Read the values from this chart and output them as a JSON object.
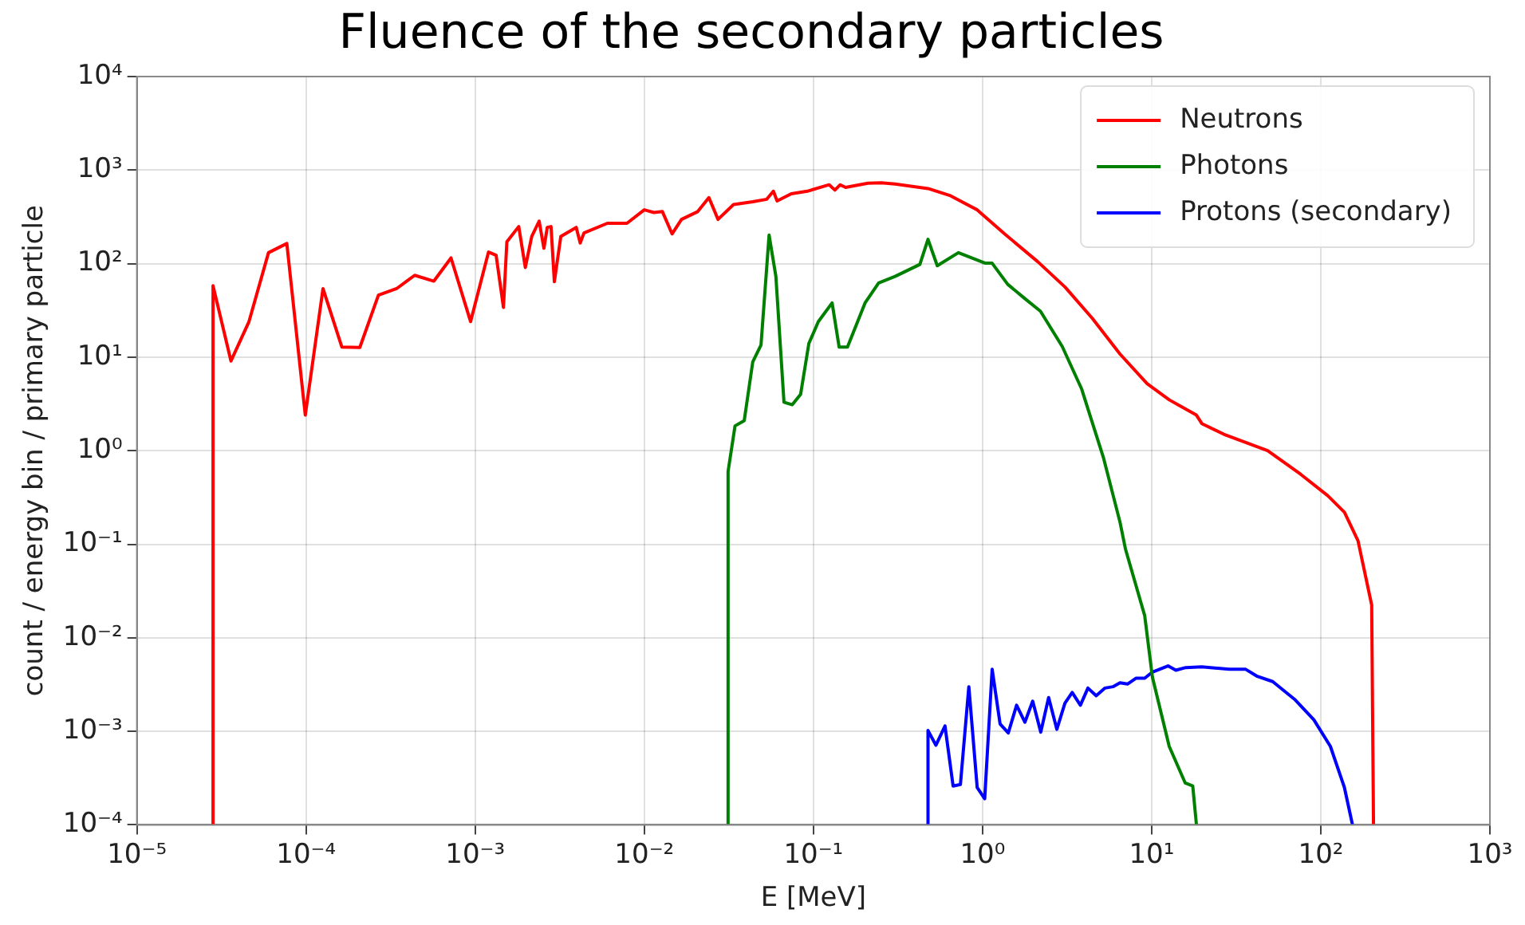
{
  "chart_data": {
    "type": "line",
    "title": "Fluence of the secondary particles",
    "xlabel": "E [MeV]",
    "ylabel": "count / energy bin / primary particle",
    "log": "xy",
    "grid": true,
    "legend": "top right",
    "marker": "none",
    "line_style": "solid",
    "xlim": [
      1e-05,
      1000
    ],
    "ylim": [
      0.0001,
      10000
    ],
    "xticks": [
      {
        "value": 1e-05,
        "label": "10⁻⁵"
      },
      {
        "value": 0.0001,
        "label": "10⁻⁴"
      },
      {
        "value": 0.001,
        "label": "10⁻³"
      },
      {
        "value": 0.01,
        "label": "10⁻²"
      },
      {
        "value": 0.1,
        "label": "10⁻¹"
      },
      {
        "value": 1,
        "label": "10⁰"
      },
      {
        "value": 10,
        "label": "10¹"
      },
      {
        "value": 100,
        "label": "10²"
      },
      {
        "value": 1000,
        "label": "10³"
      }
    ],
    "yticks": [
      {
        "value": 0.0001,
        "label": "10⁻⁴"
      },
      {
        "value": 0.001,
        "label": "10⁻³"
      },
      {
        "value": 0.01,
        "label": "10⁻²"
      },
      {
        "value": 0.1,
        "label": "10⁻¹"
      },
      {
        "value": 1,
        "label": "10⁰"
      },
      {
        "value": 10,
        "label": "10¹"
      },
      {
        "value": 100,
        "label": "10²"
      },
      {
        "value": 1000,
        "label": "10³"
      },
      {
        "value": 10000,
        "label": "10⁴"
      }
    ],
    "series": [
      {
        "name": "Neutrons",
        "color": "#ff0000",
        "x": [
          2.82e-05,
          2.82e-05,
          3.6e-05,
          4.6e-05,
          6e-05,
          7.7e-05,
          9.9e-05,
          0.000126,
          0.000163,
          0.000208,
          0.000268,
          0.000343,
          0.000439,
          0.00057,
          0.00072,
          0.00094,
          0.0012,
          0.00133,
          0.00147,
          0.00154,
          0.00181,
          0.00198,
          0.00216,
          0.00239,
          0.00255,
          0.00267,
          0.00281,
          0.00294,
          0.00321,
          0.00396,
          0.00418,
          0.0044,
          0.00605,
          0.0079,
          0.01,
          0.0114,
          0.0128,
          0.0146,
          0.0166,
          0.0207,
          0.0241,
          0.0273,
          0.0337,
          0.0438,
          0.053,
          0.058,
          0.061,
          0.074,
          0.092,
          0.124,
          0.134,
          0.144,
          0.155,
          0.21,
          0.252,
          0.304,
          0.476,
          0.64,
          0.93,
          1.35,
          2.12,
          3.08,
          4.46,
          6.5,
          9.4,
          12.7,
          18.4,
          19.8,
          26.7,
          48.5,
          76,
          110,
          138,
          166,
          200,
          205
        ],
        "values": [
          0.0001,
          58,
          9.1,
          24,
          131,
          164,
          2.4,
          54,
          12.8,
          12.7,
          46,
          54,
          75,
          65,
          115,
          24,
          133,
          123,
          34,
          171,
          249,
          91,
          195,
          285,
          146,
          244,
          249,
          64,
          195,
          244,
          166,
          213,
          270,
          270,
          376,
          352,
          360,
          208,
          297,
          360,
          508,
          297,
          428,
          458,
          488,
          594,
          468,
          558,
          594,
          697,
          611,
          697,
          653,
          724,
          730,
          710,
          635,
          536,
          376,
          208,
          105,
          56,
          26,
          10.8,
          5.2,
          3.5,
          2.4,
          1.95,
          1.5,
          1.0,
          0.56,
          0.33,
          0.22,
          0.109,
          0.0224,
          0.0001
        ]
      },
      {
        "name": "Photons",
        "color": "#008000",
        "x": [
          0.0313,
          0.0313,
          0.0344,
          0.039,
          0.0438,
          0.049,
          0.0547,
          0.06,
          0.067,
          0.075,
          0.084,
          0.094,
          0.107,
          0.129,
          0.142,
          0.159,
          0.202,
          0.243,
          0.304,
          0.426,
          0.476,
          0.54,
          0.72,
          1.04,
          1.14,
          1.41,
          1.76,
          2.2,
          2.96,
          3.85,
          5.2,
          6.5,
          7.0,
          9.1,
          10.1,
          12.7,
          15.8,
          17.5,
          18.4
        ],
        "values": [
          0.0001,
          0.6,
          1.84,
          2.1,
          8.9,
          13.5,
          202,
          73,
          3.3,
          3.1,
          4.0,
          14,
          24,
          38,
          12.8,
          12.8,
          38,
          62,
          73,
          98,
          182,
          95,
          131,
          101,
          101,
          60,
          43,
          31,
          13,
          4.6,
          0.83,
          0.172,
          0.089,
          0.0172,
          0.0038,
          0.00069,
          0.00028,
          0.00026,
          0.0001
        ]
      },
      {
        "name": "Protons (secondary)",
        "color": "#0000ff",
        "x": [
          0.476,
          0.476,
          0.53,
          0.6,
          0.67,
          0.74,
          0.83,
          0.93,
          1.03,
          1.14,
          1.27,
          1.42,
          1.59,
          1.78,
          1.98,
          2.21,
          2.46,
          2.75,
          3.07,
          3.39,
          3.79,
          4.2,
          4.7,
          5.3,
          5.9,
          6.5,
          7.2,
          8.1,
          9.1,
          10.1,
          12.5,
          13.9,
          15.9,
          19.8,
          28.8,
          36,
          41.8,
          52,
          70,
          91,
          114,
          138,
          154
        ],
        "values": [
          0.0001,
          0.00102,
          0.00071,
          0.00114,
          0.00026,
          0.00027,
          0.003,
          0.00025,
          0.00019,
          0.0046,
          0.0012,
          0.00096,
          0.0019,
          0.00125,
          0.0021,
          0.00098,
          0.0023,
          0.00105,
          0.002,
          0.0026,
          0.0019,
          0.0029,
          0.0024,
          0.0029,
          0.003,
          0.0033,
          0.0032,
          0.0037,
          0.0037,
          0.0043,
          0.005,
          0.0045,
          0.0048,
          0.0049,
          0.0046,
          0.0046,
          0.0039,
          0.0034,
          0.0022,
          0.00133,
          0.00069,
          0.00025,
          0.0001
        ]
      }
    ]
  }
}
